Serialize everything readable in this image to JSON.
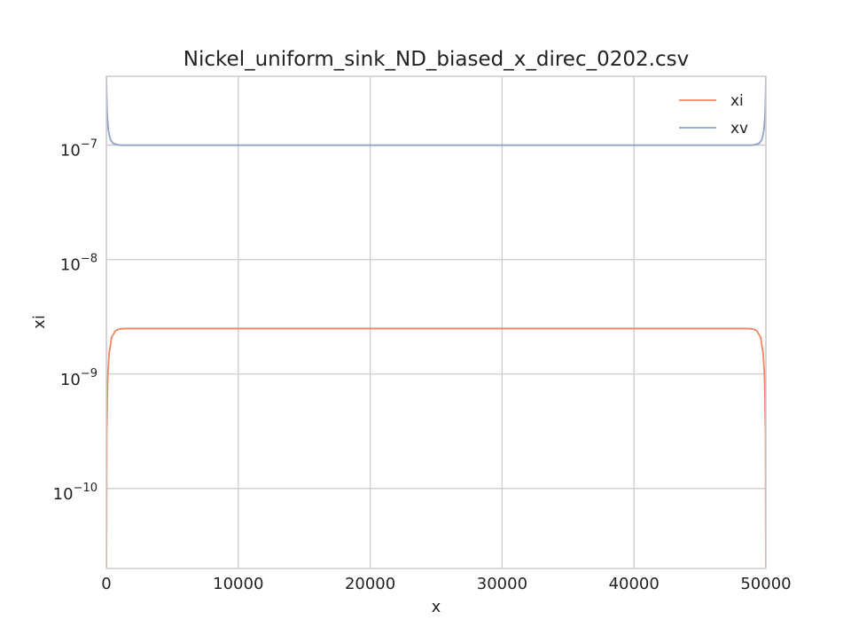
{
  "chart_data": {
    "type": "line",
    "title": "Nickel_uniform_sink_ND_biased_x_direc_0202.csv",
    "xlabel": "x",
    "ylabel": "xi",
    "xlim": [
      0,
      50000
    ],
    "ylim": [
      2e-11,
      4e-07
    ],
    "yscale": "log",
    "grid": true,
    "legend_position": "top-right",
    "x_ticks": [
      {
        "value": 0,
        "label": "0"
      },
      {
        "value": 10000,
        "label": "10000"
      },
      {
        "value": 20000,
        "label": "20000"
      },
      {
        "value": 30000,
        "label": "30000"
      },
      {
        "value": 40000,
        "label": "40000"
      },
      {
        "value": 50000,
        "label": "50000"
      }
    ],
    "y_ticks": [
      {
        "value": 1e-10,
        "base": "10",
        "exponent": "−10"
      },
      {
        "value": 1e-09,
        "base": "10",
        "exponent": "−9"
      },
      {
        "value": 1e-08,
        "base": "10",
        "exponent": "−8"
      },
      {
        "value": 1e-07,
        "base": "10",
        "exponent": "−7"
      }
    ],
    "series": [
      {
        "name": "xi",
        "color": "#f4845f",
        "x": [
          0,
          30,
          100,
          200,
          400,
          700,
          1000,
          1500,
          2500,
          10000,
          25000,
          40000,
          47500,
          48500,
          49000,
          49300,
          49600,
          49800,
          49900,
          49970,
          50000
        ],
        "y": [
          1e-11,
          3e-10,
          9e-10,
          1.5e-09,
          2.1e-09,
          2.4e-09,
          2.48e-09,
          2.5e-09,
          2.5e-09,
          2.5e-09,
          2.5e-09,
          2.5e-09,
          2.5e-09,
          2.5e-09,
          2.48e-09,
          2.4e-09,
          2.1e-09,
          1.5e-09,
          9e-10,
          3e-10,
          1e-11
        ]
      },
      {
        "name": "xv",
        "color": "#8fa0cb",
        "x": [
          0,
          20,
          60,
          150,
          300,
          500,
          800,
          1200,
          2000,
          10000,
          25000,
          40000,
          48000,
          48800,
          49200,
          49500,
          49700,
          49850,
          49940,
          49980,
          50000
        ],
        "y": [
          4e-07,
          3e-07,
          1.9e-07,
          1.35e-07,
          1.12e-07,
          1.04e-07,
          1.01e-07,
          1e-07,
          1e-07,
          1e-07,
          1e-07,
          1e-07,
          1e-07,
          1e-07,
          1.01e-07,
          1.04e-07,
          1.12e-07,
          1.35e-07,
          1.9e-07,
          3e-07,
          4e-07
        ]
      }
    ]
  }
}
